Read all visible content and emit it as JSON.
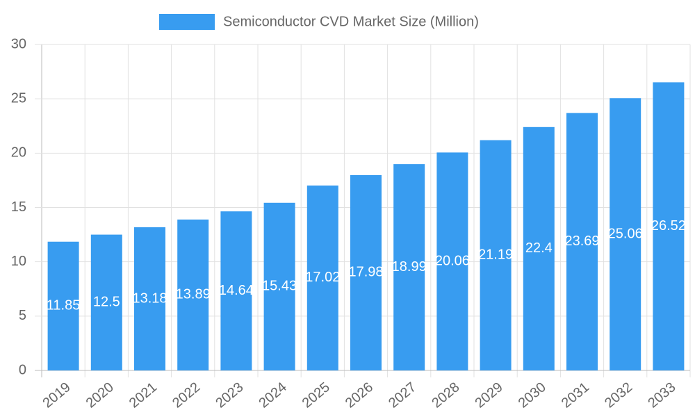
{
  "chart_data": {
    "type": "bar",
    "series": [
      {
        "name": "Semiconductor CVD Market Size (Million)",
        "color": "#389cf0",
        "values": [
          11.85,
          12.5,
          13.18,
          13.89,
          14.64,
          15.43,
          17.02,
          17.98,
          18.99,
          20.06,
          21.19,
          22.4,
          23.69,
          25.06,
          26.52
        ]
      }
    ],
    "categories": [
      "2019",
      "2020",
      "2021",
      "2022",
      "2023",
      "2024",
      "2025",
      "2026",
      "2027",
      "2028",
      "2029",
      "2030",
      "2031",
      "2032",
      "2033"
    ],
    "ylim": [
      0,
      30
    ],
    "yticks": [
      0,
      5,
      10,
      15,
      20,
      25,
      30
    ],
    "grid": true,
    "legend": "top"
  }
}
